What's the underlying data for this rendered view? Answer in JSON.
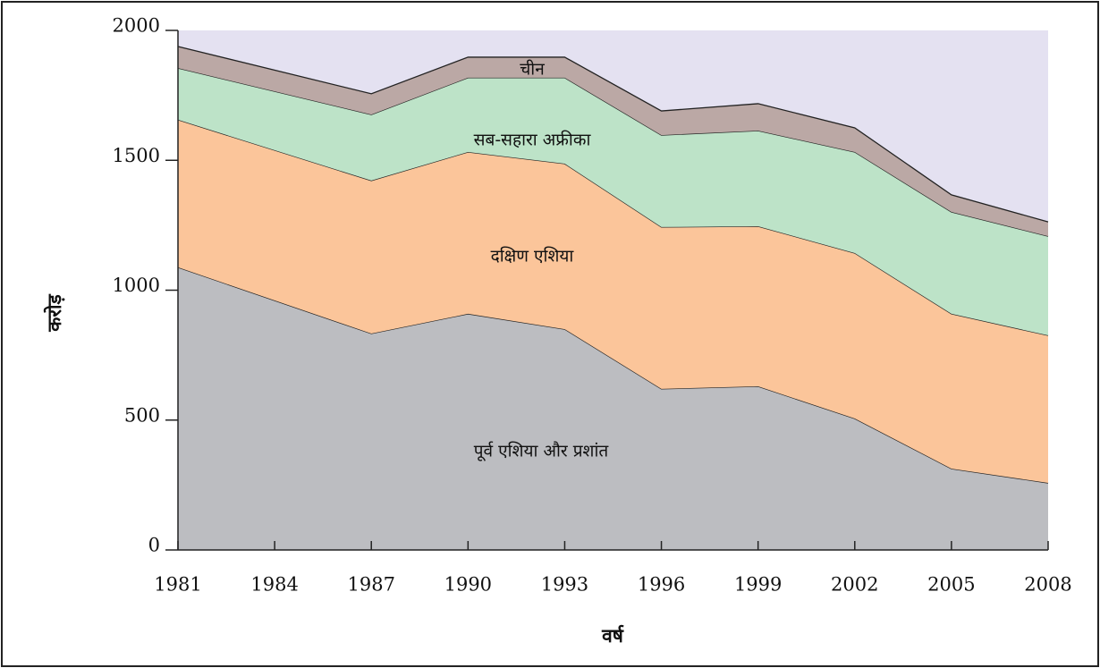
{
  "chart_data": {
    "type": "stacked-area",
    "x": [
      1981,
      1987,
      1990,
      1993,
      1996,
      1999,
      2002,
      2005,
      2008
    ],
    "series": [
      {
        "name": "पूर्व एशिया और प्रशांत",
        "color": "#bcbdc1",
        "values": [
          1088,
          833,
          909,
          850,
          620,
          630,
          506,
          313,
          258
        ]
      },
      {
        "name": "दक्षिण एशिया",
        "color": "#fbc59a",
        "values": [
          568,
          589,
          623,
          637,
          623,
          616,
          637,
          596,
          568
        ]
      },
      {
        "name": "सब-सहारा अफ्रीका",
        "color": "#bde3c8",
        "values": [
          199,
          254,
          286,
          331,
          354,
          368,
          389,
          392,
          382
        ]
      },
      {
        "name": "चीन",
        "color": "#bba8a5",
        "values": [
          83,
          80,
          79,
          79,
          93,
          104,
          93,
          66,
          55
        ]
      }
    ],
    "xlabel": "वर्ष",
    "ylabel": "करोड़",
    "xlim": [
      1981,
      2008
    ],
    "xticks": [
      1981,
      1984,
      1987,
      1990,
      1993,
      1996,
      1999,
      2002,
      2005,
      2008
    ],
    "ylim": [
      0,
      2000
    ],
    "yticks": [
      0,
      500,
      1000,
      1500,
      2000
    ],
    "background": "#e4e1f1"
  }
}
